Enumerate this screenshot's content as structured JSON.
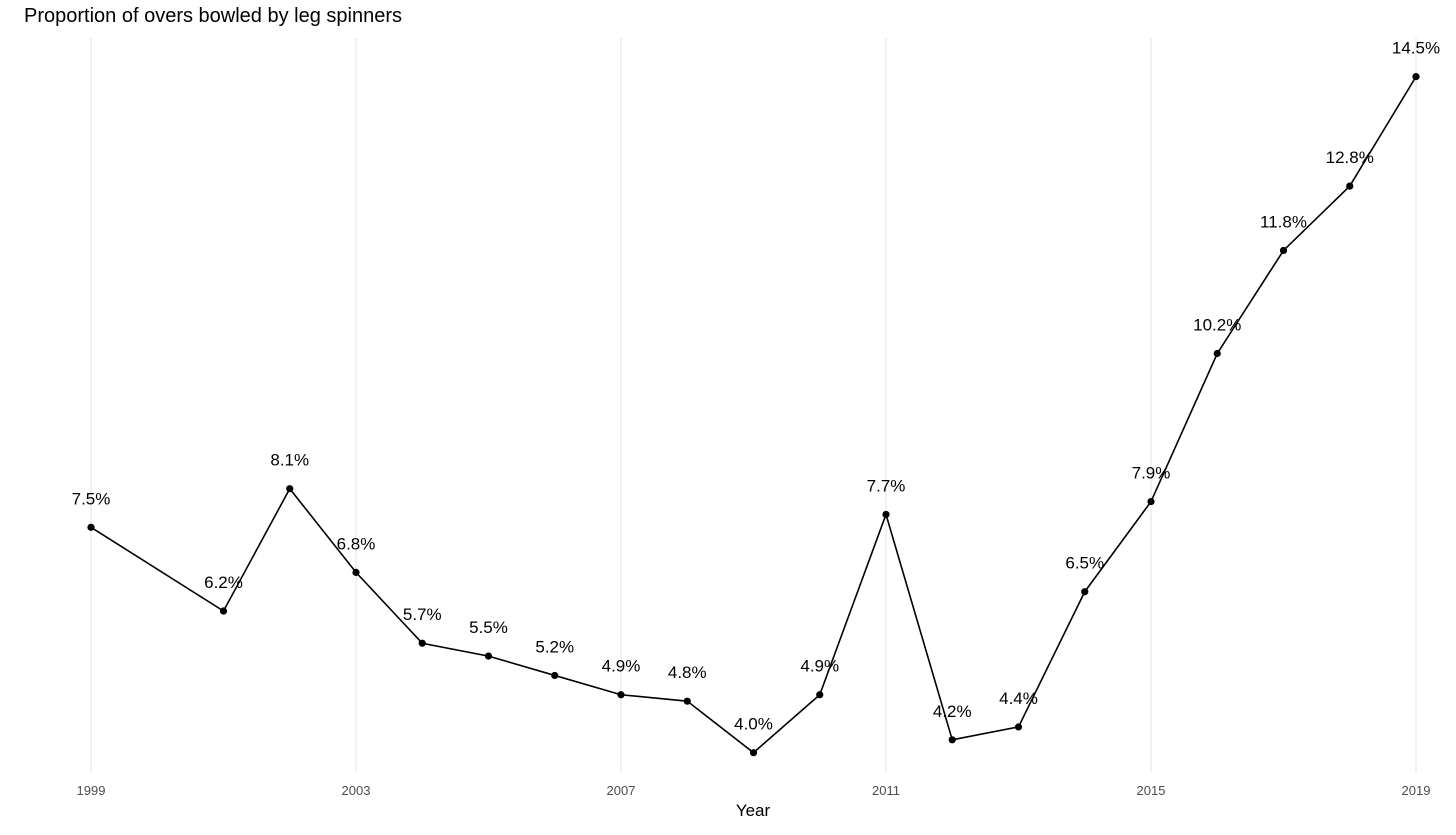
{
  "chart_data": {
    "type": "line",
    "title": "Proportion of overs bowled by leg spinners",
    "xlabel": "Year",
    "ylabel": "",
    "xlim": [
      1999,
      2019
    ],
    "x_ticks": [
      1999,
      2003,
      2007,
      2011,
      2015,
      2019
    ],
    "grid": "vertical-major",
    "ylim": [
      3.7,
      15.1
    ],
    "series": [
      {
        "x": [
          1999,
          2001,
          2002,
          2003,
          2004,
          2005,
          2006,
          2007,
          2008,
          2009,
          2010,
          2011,
          2012,
          2013,
          2014,
          2015,
          2016,
          2017,
          2018,
          2019
        ],
        "y": [
          7.5,
          6.2,
          8.1,
          6.8,
          5.7,
          5.5,
          5.2,
          4.9,
          4.8,
          4.0,
          4.9,
          7.7,
          4.2,
          4.4,
          6.5,
          7.9,
          10.2,
          11.8,
          12.8,
          14.5
        ],
        "labels": [
          "7.5%",
          "6.2%",
          "8.1%",
          "6.8%",
          "5.7%",
          "5.5%",
          "5.2%",
          "4.9%",
          "4.8%",
          "4.0%",
          "4.9%",
          "7.7%",
          "4.2%",
          "4.4%",
          "6.5%",
          "7.9%",
          "10.2%",
          "11.8%",
          "12.8%",
          "14.5%"
        ],
        "color": "#000000"
      }
    ]
  }
}
